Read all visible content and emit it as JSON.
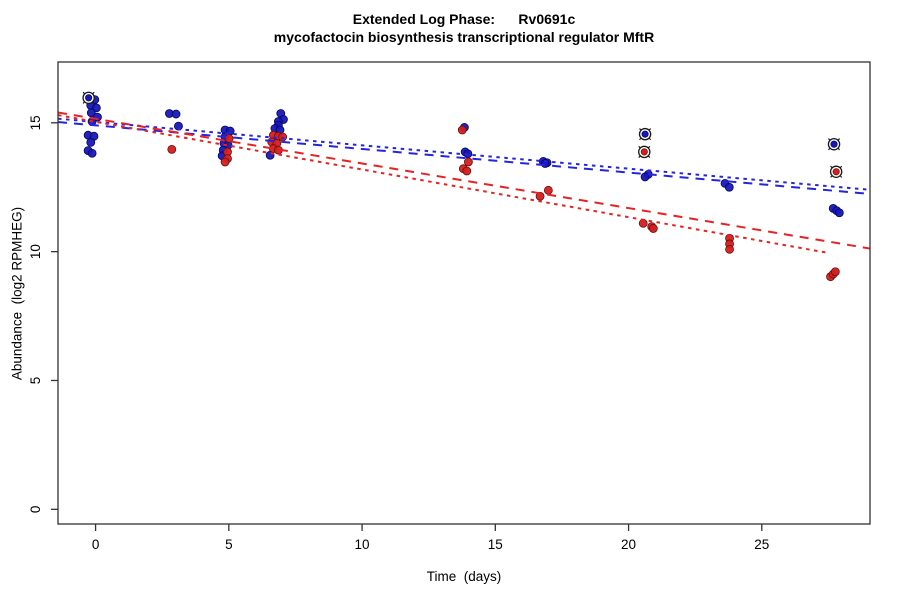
{
  "title": {
    "line1": "Extended Log Phase:      Rv0691c",
    "line2": "mycofactocin biosynthesis transcriptional regulator MftR"
  },
  "chart_data": {
    "type": "scatter",
    "title": "Extended Log Phase: Rv0691c — mycofactocin biosynthesis transcriptional regulator MftR",
    "xlabel": "Time  (days)",
    "ylabel": "Abundance  (log2 RPMHEG)",
    "xlim": [
      -1.41,
      29.06
    ],
    "ylim": [
      -0.57,
      17.36
    ],
    "x_ticks": [
      0,
      5,
      10,
      15,
      20,
      25
    ],
    "y_ticks": [
      0,
      5,
      10,
      15
    ],
    "grid": false,
    "legend": "none",
    "colors": {
      "blue_point": "#1717bb",
      "blue_point_edge": "#06065a",
      "red_point": "#d41f1f",
      "red_point_edge": "#6b0c0c",
      "blue_line": "#2525e0",
      "red_line": "#e82222",
      "outlier_mark": "#1a1a1a",
      "box": "#333333"
    },
    "series": [
      {
        "name": "blue-replicates",
        "color": "#1717bb",
        "points": [
          {
            "x": -0.26,
            "y": 15.97,
            "o": true
          },
          {
            "x": -0.03,
            "y": 15.9
          },
          {
            "x": -0.18,
            "y": 15.67
          },
          {
            "x": 0.03,
            "y": 15.58
          },
          {
            "x": -0.16,
            "y": 15.39
          },
          {
            "x": 0.07,
            "y": 15.22
          },
          {
            "x": -0.13,
            "y": 15.05
          },
          {
            "x": -0.28,
            "y": 14.52
          },
          {
            "x": -0.06,
            "y": 14.48
          },
          {
            "x": -0.18,
            "y": 14.24
          },
          {
            "x": -0.28,
            "y": 13.92
          },
          {
            "x": -0.13,
            "y": 13.82
          },
          {
            "x": 2.77,
            "y": 15.36
          },
          {
            "x": 3.02,
            "y": 15.34
          },
          {
            "x": 3.11,
            "y": 14.87
          },
          {
            "x": 4.86,
            "y": 14.72
          },
          {
            "x": 5.05,
            "y": 14.68
          },
          {
            "x": 4.86,
            "y": 14.46
          },
          {
            "x": 4.82,
            "y": 14.2
          },
          {
            "x": 4.97,
            "y": 14.13
          },
          {
            "x": 4.79,
            "y": 13.94
          },
          {
            "x": 4.75,
            "y": 13.72
          },
          {
            "x": 6.95,
            "y": 15.36
          },
          {
            "x": 7.05,
            "y": 15.13
          },
          {
            "x": 6.86,
            "y": 15.05
          },
          {
            "x": 6.86,
            "y": 14.91
          },
          {
            "x": 6.73,
            "y": 14.78
          },
          {
            "x": 6.92,
            "y": 14.72
          },
          {
            "x": 6.55,
            "y": 13.74
          },
          {
            "x": 13.84,
            "y": 14.82
          },
          {
            "x": 13.87,
            "y": 13.87
          },
          {
            "x": 13.97,
            "y": 13.8
          },
          {
            "x": 16.8,
            "y": 13.5
          },
          {
            "x": 16.94,
            "y": 13.45
          },
          {
            "x": 16.87,
            "y": 13.42
          },
          {
            "x": 20.62,
            "y": 14.56,
            "o": true
          },
          {
            "x": 20.74,
            "y": 13.0
          },
          {
            "x": 20.62,
            "y": 12.9
          },
          {
            "x": 23.62,
            "y": 12.65
          },
          {
            "x": 23.78,
            "y": 12.5
          },
          {
            "x": 27.71,
            "y": 14.17,
            "o": true
          },
          {
            "x": 27.68,
            "y": 11.68
          },
          {
            "x": 27.81,
            "y": 11.59
          },
          {
            "x": 27.91,
            "y": 11.51
          }
        ]
      },
      {
        "name": "red-replicates",
        "color": "#d41f1f",
        "points": [
          {
            "x": 2.86,
            "y": 13.97
          },
          {
            "x": 5.01,
            "y": 14.39
          },
          {
            "x": 4.95,
            "y": 13.87
          },
          {
            "x": 4.95,
            "y": 13.61
          },
          {
            "x": 4.86,
            "y": 13.48
          },
          {
            "x": 6.67,
            "y": 14.52
          },
          {
            "x": 6.86,
            "y": 14.48
          },
          {
            "x": 7.02,
            "y": 14.45
          },
          {
            "x": 6.61,
            "y": 14.26
          },
          {
            "x": 6.8,
            "y": 14.2
          },
          {
            "x": 6.67,
            "y": 14.0
          },
          {
            "x": 6.86,
            "y": 13.94
          },
          {
            "x": 13.76,
            "y": 14.72
          },
          {
            "x": 13.99,
            "y": 13.48
          },
          {
            "x": 13.8,
            "y": 13.22
          },
          {
            "x": 13.93,
            "y": 13.13
          },
          {
            "x": 16.99,
            "y": 12.38
          },
          {
            "x": 16.68,
            "y": 12.15
          },
          {
            "x": 20.59,
            "y": 13.87,
            "o": true
          },
          {
            "x": 20.55,
            "y": 11.1
          },
          {
            "x": 20.87,
            "y": 10.97
          },
          {
            "x": 20.93,
            "y": 10.9
          },
          {
            "x": 23.79,
            "y": 10.52
          },
          {
            "x": 23.79,
            "y": 10.3
          },
          {
            "x": 23.79,
            "y": 10.09
          },
          {
            "x": 27.79,
            "y": 13.1,
            "o": true
          },
          {
            "x": 27.58,
            "y": 9.03
          },
          {
            "x": 27.68,
            "y": 9.13
          },
          {
            "x": 27.76,
            "y": 9.22
          }
        ]
      }
    ],
    "trend_lines": [
      {
        "name": "blue-fit-dotted",
        "color": "#2525e0",
        "dash": "dotted",
        "x1": -1.41,
        "y1": 15.16,
        "x2": 29.06,
        "y2": 12.4
      },
      {
        "name": "blue-fit-dashed",
        "color": "#2525e0",
        "dash": "dashed",
        "x1": -1.41,
        "y1": 15.03,
        "x2": 29.06,
        "y2": 12.24
      },
      {
        "name": "red-fit-dashed",
        "color": "#e82222",
        "dash": "dashed",
        "x1": -1.41,
        "y1": 15.4,
        "x2": 29.06,
        "y2": 10.12
      },
      {
        "name": "red-fit-dotted",
        "color": "#e82222",
        "dash": "dotted",
        "x1": -1.41,
        "y1": 15.3,
        "x2": 27.5,
        "y2": 9.95
      }
    ]
  }
}
